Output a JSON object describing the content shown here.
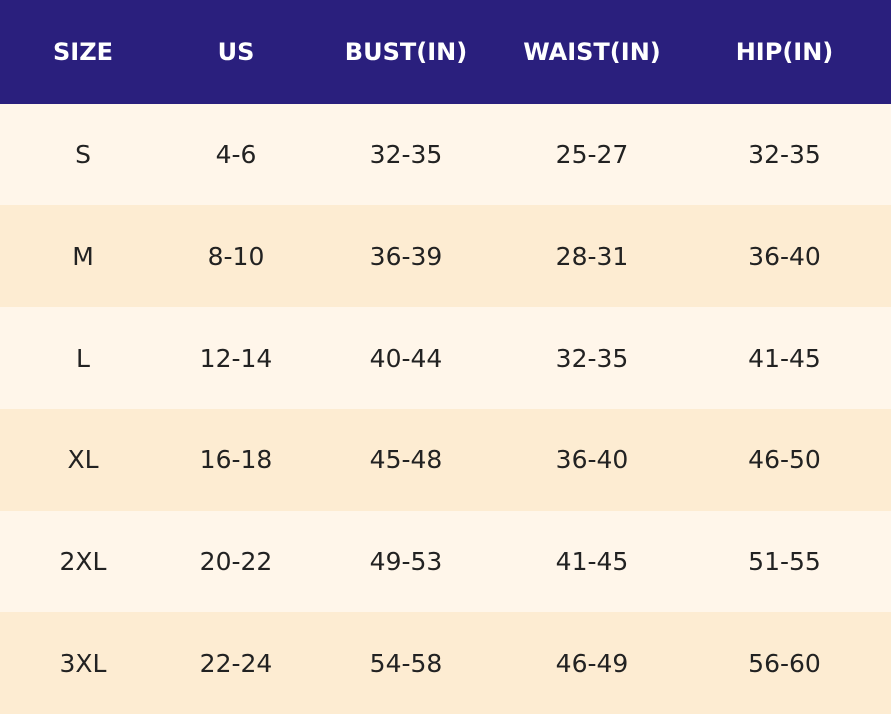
{
  "table": {
    "header": [
      "SIZE",
      "US",
      "BUST(IN)",
      "WAIST(IN)",
      "HIP(IN)"
    ],
    "rows": [
      [
        "S",
        "4-6",
        "32-35",
        "25-27",
        "32-35"
      ],
      [
        "M",
        "8-10",
        "36-39",
        "28-31",
        "36-40"
      ],
      [
        "L",
        "12-14",
        "40-44",
        "32-35",
        "41-45"
      ],
      [
        "XL",
        "16-18",
        "45-48",
        "36-40",
        "46-50"
      ],
      [
        "2XL",
        "20-22",
        "49-53",
        "41-45",
        "51-55"
      ],
      [
        "3XL",
        "22-24",
        "54-58",
        "46-49",
        "56-60"
      ]
    ]
  }
}
